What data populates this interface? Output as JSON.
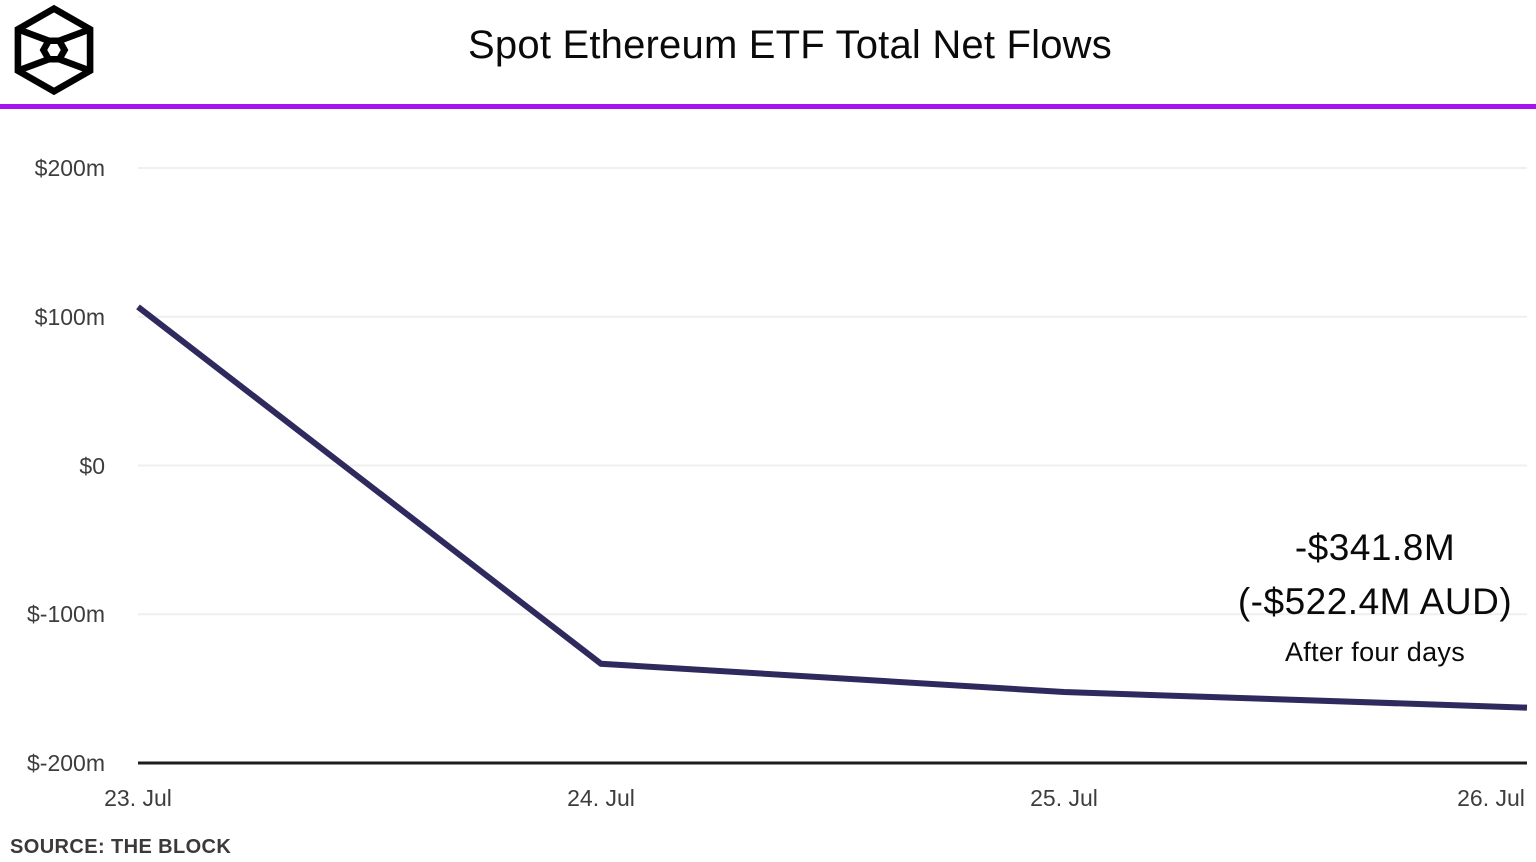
{
  "header": {
    "title": "Spot Ethereum ETF Total Net Flows",
    "logo_name": "the-block-cube-logo",
    "accent_color": "#a912f0"
  },
  "chart_data": {
    "type": "line",
    "title": "Spot Ethereum ETF Total Net Flows",
    "categories": [
      "23. Jul",
      "24. Jul",
      "25. Jul",
      "26. Jul"
    ],
    "series": [
      {
        "name": "Total Net Flows ($m)",
        "values": [
          106.6,
          -133.3,
          -152.3,
          -162.8
        ]
      }
    ],
    "ylim": [
      -200,
      200
    ],
    "yticks": [
      {
        "label": "$200m",
        "value": 200
      },
      {
        "label": "$100m",
        "value": 100
      },
      {
        "label": "$0",
        "value": 0
      },
      {
        "label": "$-100m",
        "value": -100
      },
      {
        "label": "$-200m",
        "value": -200
      }
    ],
    "grid": true,
    "legend": "none",
    "line_color": "#2e2a5e",
    "grid_color": "#efefef",
    "axis_color": "#1c1c1c",
    "tick_text_color": "#3d3d3d",
    "annotation": {
      "headline": "-$341.8M",
      "sub": "(-$522.4M AUD)",
      "caption": "After four days"
    }
  },
  "footer": {
    "source": "SOURCE: THE BLOCK"
  }
}
